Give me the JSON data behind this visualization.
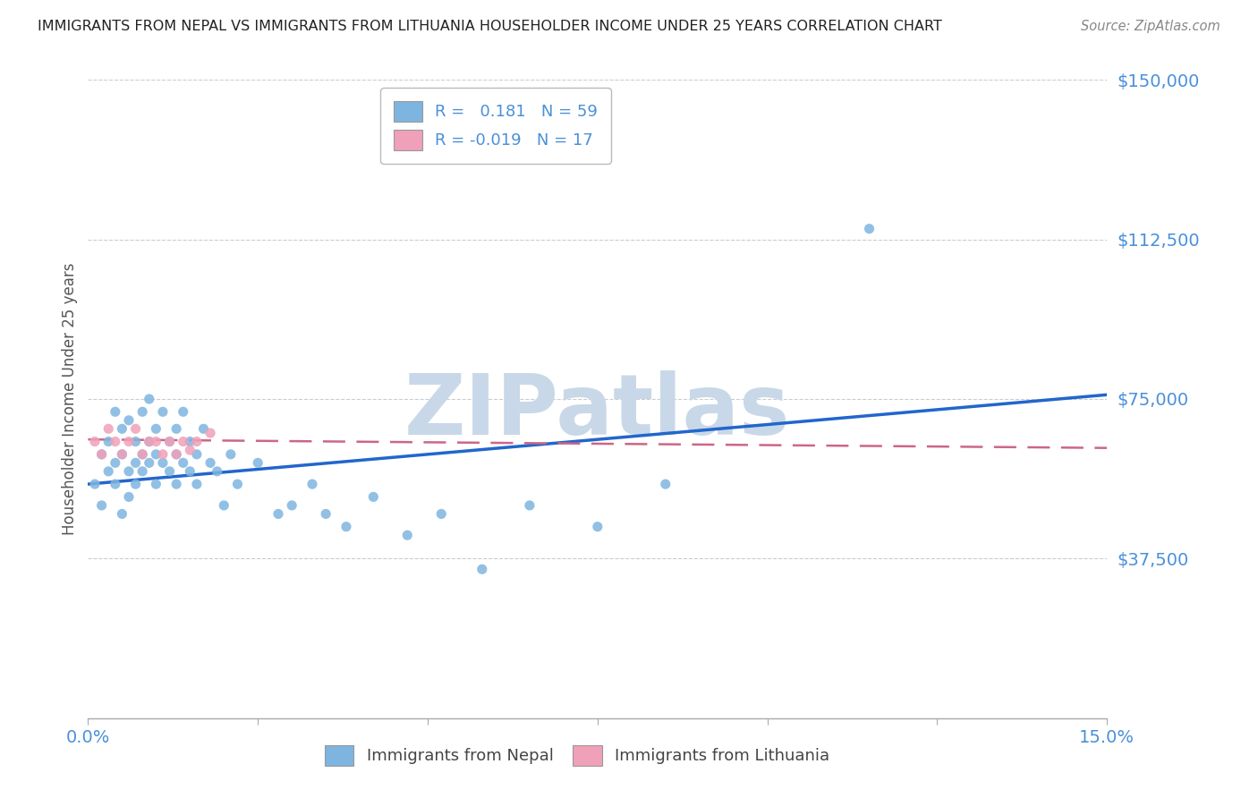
{
  "title": "IMMIGRANTS FROM NEPAL VS IMMIGRANTS FROM LITHUANIA HOUSEHOLDER INCOME UNDER 25 YEARS CORRELATION CHART",
  "source": "Source: ZipAtlas.com",
  "ylabel": "Householder Income Under 25 years",
  "xlim": [
    0.0,
    0.15
  ],
  "ylim": [
    0,
    150000
  ],
  "xticks": [
    0.0,
    0.025,
    0.05,
    0.075,
    0.1,
    0.125,
    0.15
  ],
  "xticklabels": [
    "0.0%",
    "",
    "",
    "",
    "",
    "",
    "15.0%"
  ],
  "yticks": [
    0,
    37500,
    75000,
    112500,
    150000
  ],
  "yticklabels": [
    "",
    "$37,500",
    "$75,000",
    "$112,500",
    "$150,000"
  ],
  "nepal_R": 0.181,
  "nepal_N": 59,
  "lithuania_R": -0.019,
  "lithuania_N": 17,
  "nepal_color": "#7eb5e0",
  "lithuania_color": "#f0a0b8",
  "nepal_line_color": "#2266cc",
  "lithuania_line_color": "#cc6688",
  "watermark": "ZIPatlas",
  "watermark_color": "#c8d8e8",
  "nepal_x": [
    0.001,
    0.002,
    0.002,
    0.003,
    0.003,
    0.004,
    0.004,
    0.004,
    0.005,
    0.005,
    0.005,
    0.006,
    0.006,
    0.006,
    0.007,
    0.007,
    0.007,
    0.008,
    0.008,
    0.008,
    0.009,
    0.009,
    0.009,
    0.01,
    0.01,
    0.01,
    0.011,
    0.011,
    0.012,
    0.012,
    0.013,
    0.013,
    0.013,
    0.014,
    0.014,
    0.015,
    0.015,
    0.016,
    0.016,
    0.017,
    0.018,
    0.019,
    0.02,
    0.021,
    0.022,
    0.025,
    0.028,
    0.03,
    0.033,
    0.035,
    0.038,
    0.042,
    0.047,
    0.052,
    0.058,
    0.065,
    0.075,
    0.085,
    0.115
  ],
  "nepal_y": [
    55000,
    50000,
    62000,
    58000,
    65000,
    60000,
    72000,
    55000,
    62000,
    68000,
    48000,
    58000,
    70000,
    52000,
    60000,
    65000,
    55000,
    62000,
    72000,
    58000,
    65000,
    60000,
    75000,
    55000,
    68000,
    62000,
    60000,
    72000,
    58000,
    65000,
    62000,
    55000,
    68000,
    60000,
    72000,
    58000,
    65000,
    62000,
    55000,
    68000,
    60000,
    58000,
    50000,
    62000,
    55000,
    60000,
    48000,
    50000,
    55000,
    48000,
    45000,
    52000,
    43000,
    48000,
    35000,
    50000,
    45000,
    55000,
    115000
  ],
  "lithuania_x": [
    0.001,
    0.002,
    0.003,
    0.004,
    0.005,
    0.006,
    0.007,
    0.008,
    0.009,
    0.01,
    0.011,
    0.012,
    0.013,
    0.014,
    0.015,
    0.016,
    0.018
  ],
  "lithuania_y": [
    65000,
    62000,
    68000,
    65000,
    62000,
    65000,
    68000,
    62000,
    65000,
    65000,
    62000,
    65000,
    62000,
    65000,
    63000,
    65000,
    67000
  ],
  "background_color": "#ffffff",
  "grid_color": "#cccccc",
  "title_color": "#222222",
  "tick_color": "#4a90d9",
  "nepal_line_y0": 55000,
  "nepal_line_y1": 76000,
  "lithuania_line_y0": 65500,
  "lithuania_line_y1": 63500
}
